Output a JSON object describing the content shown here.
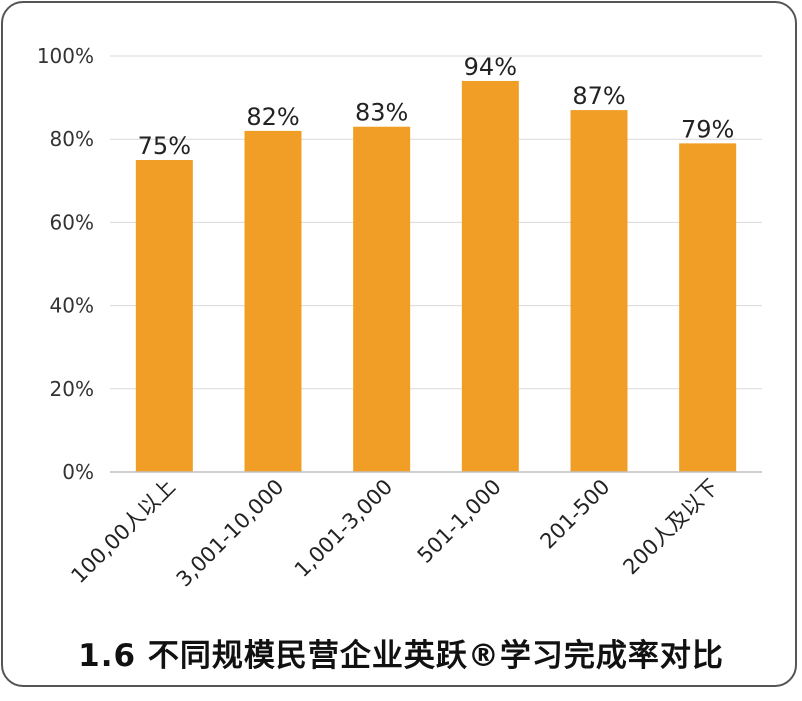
{
  "chart_data": {
    "type": "bar",
    "title": "1.6 不同规模民营企业英跃®学习完成率对比",
    "categories": [
      "100,00人以上",
      "3,001-10,000",
      "1,001-3,000",
      "501-1,000",
      "201-500",
      "200人及以下"
    ],
    "values": [
      75,
      82,
      83,
      94,
      87,
      79
    ],
    "data_labels": [
      "75%",
      "82%",
      "83%",
      "94%",
      "87%",
      "79%"
    ],
    "y_ticks": [
      0,
      20,
      40,
      60,
      80,
      100
    ],
    "y_tick_labels": [
      "0%",
      "20%",
      "40%",
      "60%",
      "80%",
      "100%"
    ],
    "ylim": [
      0,
      100
    ],
    "xlabel": "",
    "ylabel": "",
    "grid": true,
    "legend": "none",
    "bar_color": "#F09E26",
    "grid_color": "#D9D9D9"
  }
}
